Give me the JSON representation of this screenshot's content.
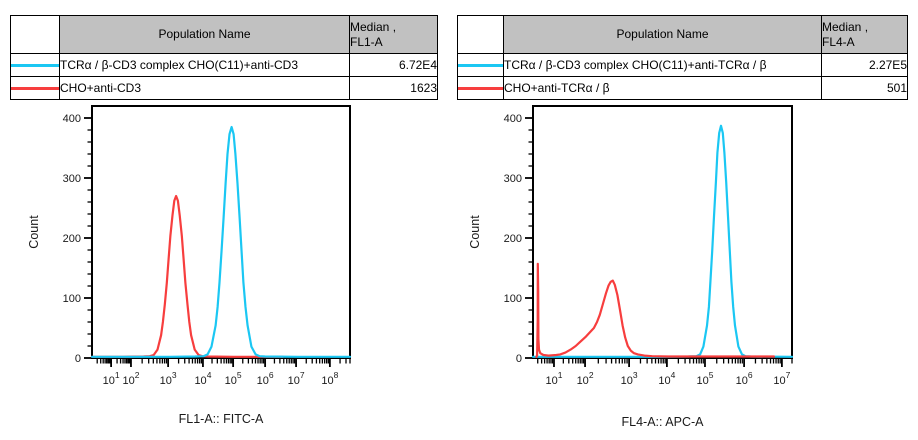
{
  "panels": [
    {
      "table": {
        "population_header": "Population Name",
        "median_header": "Median ,\nFL1-A",
        "rows": [
          {
            "color": "#1bc7f3",
            "name": "TCRα / β-CD3 complex CHO(C11)+anti-CD3",
            "median": "6.72E4"
          },
          {
            "color": "#f73e3e",
            "name": "CHO+anti-CD3",
            "median": "1623"
          }
        ]
      }
    },
    {
      "table": {
        "population_header": "Population Name",
        "median_header": "Median ,\nFL4-A",
        "rows": [
          {
            "color": "#1bc7f3",
            "name": "TCRα / β-CD3 complex CHO(C11)+anti-TCRα / β",
            "median": "2.27E5"
          },
          {
            "color": "#f73e3e",
            "name": "CHO+anti-TCRα / β",
            "median": "501"
          }
        ]
      }
    }
  ],
  "chart_data": [
    {
      "type": "line",
      "subtype": "flow-histogram-overlay",
      "xlabel": "FL1-A:: FITC-A",
      "ylabel": "Count",
      "x_scale": "biexponential-log",
      "x_tick_base": 10,
      "x_ticks": [
        {
          "exp": 1,
          "frac": 0.074
        },
        {
          "exp": 2,
          "frac": 0.151
        },
        {
          "exp": 3,
          "frac": 0.295
        },
        {
          "exp": 4,
          "frac": 0.43
        },
        {
          "exp": 5,
          "frac": 0.547
        },
        {
          "exp": 6,
          "frac": 0.671
        },
        {
          "exp": 7,
          "frac": 0.791
        },
        {
          "exp": 8,
          "frac": 0.922
        }
      ],
      "y_ticks": [
        0,
        100,
        200,
        300,
        400
      ],
      "y_minor_step": 20,
      "ylim": [
        0,
        420
      ],
      "grid": false,
      "legend_position": "table-above",
      "series": [
        {
          "name": "CHO+anti-CD3",
          "color": "#f73e3e",
          "median": "1623",
          "peak_count": 268,
          "peak_x_approx": "1.7e3",
          "points": [
            [
              0.0,
              0
            ],
            [
              0.12,
              0
            ],
            [
              0.2,
              0.5
            ],
            [
              0.224,
              1
            ],
            [
              0.239,
              3
            ],
            [
              0.254,
              12
            ],
            [
              0.268,
              36
            ],
            [
              0.275,
              58
            ],
            [
              0.282,
              87
            ],
            [
              0.29,
              123
            ],
            [
              0.297,
              163
            ],
            [
              0.304,
              202
            ],
            [
              0.312,
              236
            ],
            [
              0.319,
              260
            ],
            [
              0.326,
              268
            ],
            [
              0.333,
              260
            ],
            [
              0.34,
              236
            ],
            [
              0.348,
              202
            ],
            [
              0.355,
              163
            ],
            [
              0.362,
              123
            ],
            [
              0.37,
              87
            ],
            [
              0.377,
              58
            ],
            [
              0.384,
              36
            ],
            [
              0.398,
              12
            ],
            [
              0.413,
              3
            ],
            [
              0.428,
              1
            ],
            [
              0.45,
              0.5
            ],
            [
              0.55,
              0
            ],
            [
              0.74,
              0
            ]
          ]
        },
        {
          "name": "TCRα / β-CD3 complex CHO(C11)+anti-CD3",
          "color": "#1bc7f3",
          "median": "6.72E4",
          "peak_count": 383,
          "peak_x_approx": "1.0e5",
          "points": [
            [
              0.0,
              0
            ],
            [
              0.3,
              0
            ],
            [
              0.4,
              0.5
            ],
            [
              0.432,
              1
            ],
            [
              0.448,
              4
            ],
            [
              0.463,
              17
            ],
            [
              0.479,
              52
            ],
            [
              0.487,
              83
            ],
            [
              0.494,
              124
            ],
            [
              0.502,
              175
            ],
            [
              0.51,
              232
            ],
            [
              0.518,
              289
            ],
            [
              0.525,
              338
            ],
            [
              0.533,
              371
            ],
            [
              0.541,
              383
            ],
            [
              0.549,
              371
            ],
            [
              0.556,
              338
            ],
            [
              0.564,
              289
            ],
            [
              0.572,
              232
            ],
            [
              0.58,
              175
            ],
            [
              0.587,
              124
            ],
            [
              0.595,
              83
            ],
            [
              0.603,
              52
            ],
            [
              0.618,
              17
            ],
            [
              0.634,
              4
            ],
            [
              0.65,
              1
            ],
            [
              0.67,
              0.5
            ],
            [
              0.8,
              0
            ],
            [
              1.0,
              0
            ]
          ]
        }
      ]
    },
    {
      "type": "line",
      "subtype": "flow-histogram-overlay",
      "xlabel": "FL4-A:: APC-A",
      "ylabel": "Count",
      "x_scale": "biexponential-log",
      "x_tick_base": 10,
      "x_ticks": [
        {
          "exp": 1,
          "frac": 0.081
        },
        {
          "exp": 2,
          "frac": 0.201
        },
        {
          "exp": 3,
          "frac": 0.371
        },
        {
          "exp": 4,
          "frac": 0.517
        },
        {
          "exp": 5,
          "frac": 0.664
        },
        {
          "exp": 6,
          "frac": 0.815
        },
        {
          "exp": 7,
          "frac": 0.961
        }
      ],
      "y_ticks": [
        0,
        100,
        200,
        300,
        400
      ],
      "y_minor_step": 20,
      "ylim": [
        0,
        420
      ],
      "grid": false,
      "legend_position": "table-above",
      "series": [
        {
          "name": "TCRα / β-CD3 complex CHO(C11)+anti-TCRα / β",
          "color": "#1bc7f3",
          "median": "2.27E5",
          "peak_count": 385,
          "peak_x_approx": "2.6e5",
          "points": [
            [
              0.0,
              0
            ],
            [
              0.5,
              0
            ],
            [
              0.6,
              0.5
            ],
            [
              0.631,
              1
            ],
            [
              0.645,
              4
            ],
            [
              0.658,
              17
            ],
            [
              0.672,
              52
            ],
            [
              0.679,
              83
            ],
            [
              0.685,
              125
            ],
            [
              0.692,
              176
            ],
            [
              0.699,
              234
            ],
            [
              0.706,
              291
            ],
            [
              0.712,
              340
            ],
            [
              0.719,
              373
            ],
            [
              0.726,
              385
            ],
            [
              0.733,
              373
            ],
            [
              0.739,
              340
            ],
            [
              0.746,
              291
            ],
            [
              0.753,
              234
            ],
            [
              0.76,
              176
            ],
            [
              0.766,
              125
            ],
            [
              0.773,
              83
            ],
            [
              0.78,
              52
            ],
            [
              0.793,
              17
            ],
            [
              0.807,
              4
            ],
            [
              0.82,
              1
            ],
            [
              0.84,
              0.5
            ],
            [
              1.0,
              0
            ]
          ]
        },
        {
          "name": "CHO+anti-TCRα / β",
          "color": "#f73e3e",
          "median": "501",
          "peak_count": 127,
          "peak_x_approx": "5.0e2",
          "edge_spike_count": 155,
          "points": [
            [
              0.013,
              0
            ],
            [
              0.016,
              2
            ],
            [
              0.018,
              60
            ],
            [
              0.0185,
              155
            ],
            [
              0.02,
              110
            ],
            [
              0.021,
              30
            ],
            [
              0.023,
              12
            ],
            [
              0.028,
              6
            ],
            [
              0.04,
              3
            ],
            [
              0.06,
              2
            ],
            [
              0.09,
              3
            ],
            [
              0.105,
              4
            ],
            [
              0.125,
              7
            ],
            [
              0.145,
              12
            ],
            [
              0.165,
              18
            ],
            [
              0.185,
              26
            ],
            [
              0.205,
              34
            ],
            [
              0.222,
              42
            ],
            [
              0.235,
              48
            ],
            [
              0.247,
              58
            ],
            [
              0.258,
              70
            ],
            [
              0.27,
              88
            ],
            [
              0.282,
              106
            ],
            [
              0.292,
              119
            ],
            [
              0.3,
              125
            ],
            [
              0.308,
              127
            ],
            [
              0.316,
              120
            ],
            [
              0.326,
              103
            ],
            [
              0.336,
              78
            ],
            [
              0.346,
              52
            ],
            [
              0.356,
              32
            ],
            [
              0.366,
              18
            ],
            [
              0.378,
              10
            ],
            [
              0.39,
              6
            ],
            [
              0.405,
              4
            ],
            [
              0.43,
              2
            ],
            [
              0.46,
              1
            ],
            [
              0.52,
              0.5
            ],
            [
              0.93,
              0.5
            ]
          ]
        }
      ]
    }
  ]
}
